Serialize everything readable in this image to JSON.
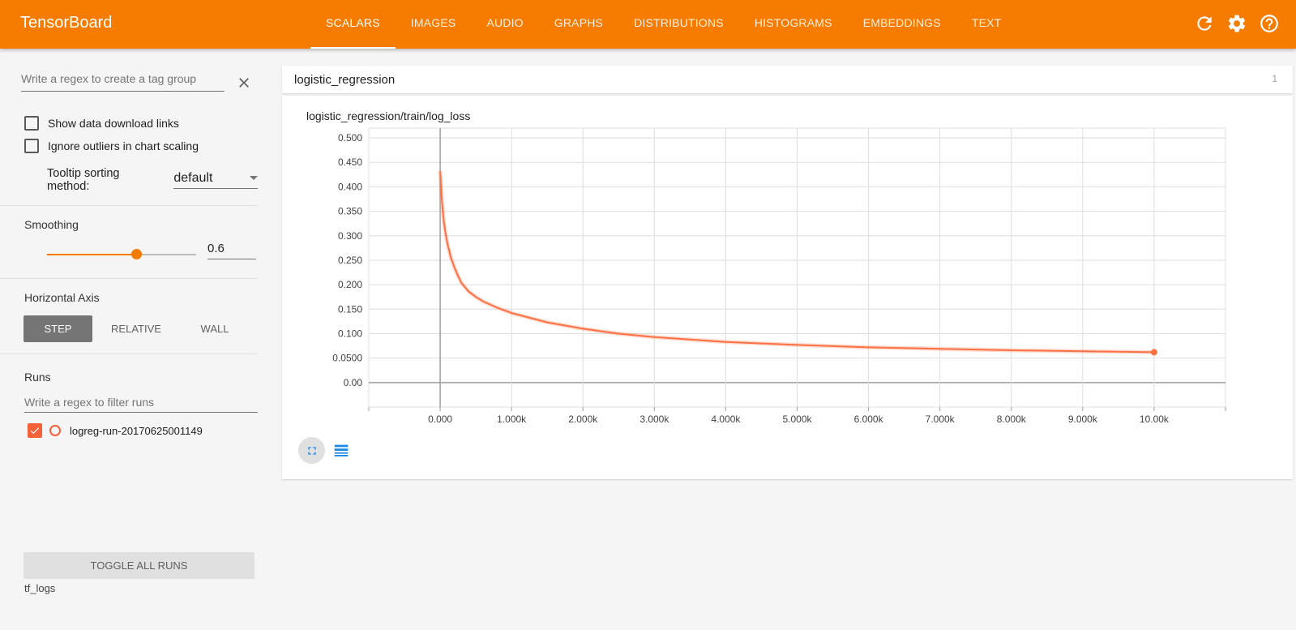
{
  "app": {
    "brand": "TensorBoard",
    "tabs": [
      "SCALARS",
      "IMAGES",
      "AUDIO",
      "GRAPHS",
      "DISTRIBUTIONS",
      "HISTOGRAMS",
      "EMBEDDINGS",
      "TEXT"
    ],
    "active_tab": "SCALARS",
    "accent": "#f57c00",
    "icons": [
      "refresh-icon",
      "settings-icon",
      "help-icon"
    ]
  },
  "sidebar": {
    "tag_regex_placeholder": "Write a regex to create a tag group",
    "show_download_links": "Show data download links",
    "ignore_outliers": "Ignore outliers in chart scaling",
    "tooltip_label": "Tooltip sorting method:",
    "tooltip_value": "default",
    "smoothing_title": "Smoothing",
    "smoothing_value": "0.6",
    "smoothing_fraction": 0.6,
    "horizontal_axis_title": "Horizontal Axis",
    "axis_options": [
      "STEP",
      "RELATIVE",
      "WALL"
    ],
    "axis_selected": "STEP",
    "runs_title": "Runs",
    "runs_filter_placeholder": "Write a regex to filter runs",
    "runs": [
      {
        "name": "logreg-run-20170625001149",
        "checked": true,
        "color": "#f4623a"
      }
    ],
    "toggle_all": "TOGGLE ALL RUNS",
    "logdir": "tf_logs"
  },
  "main": {
    "group_name": "logistic_regression",
    "group_count": "1",
    "chart_title": "logistic_regression/train/log_loss"
  },
  "chart_data": {
    "type": "line",
    "title": "logistic_regression/train/log_loss",
    "xlabel": "",
    "ylabel": "",
    "xlim": [
      -1000,
      11000
    ],
    "ylim": [
      -0.05,
      0.52
    ],
    "x_ticks": [
      0,
      1000,
      2000,
      3000,
      4000,
      5000,
      6000,
      7000,
      8000,
      9000,
      10000
    ],
    "x_tick_labels": [
      "0.000",
      "1.000k",
      "2.000k",
      "3.000k",
      "4.000k",
      "5.000k",
      "6.000k",
      "7.000k",
      "8.000k",
      "9.000k",
      "10.00k"
    ],
    "y_ticks": [
      0,
      0.05,
      0.1,
      0.15,
      0.2,
      0.25,
      0.3,
      0.35,
      0.4,
      0.45,
      0.5
    ],
    "y_tick_labels": [
      "0.00",
      "0.0500",
      "0.100",
      "0.150",
      "0.200",
      "0.250",
      "0.300",
      "0.350",
      "0.400",
      "0.450",
      "0.500"
    ],
    "grid": true,
    "series": [
      {
        "color": "#ff7043",
        "x": [
          0,
          25,
          50,
          75,
          100,
          150,
          200,
          250,
          300,
          400,
          500,
          600,
          800,
          1000,
          1500,
          2000,
          2500,
          3000,
          4000,
          5000,
          6000,
          7000,
          8000,
          9000,
          10000
        ],
        "y": [
          0.432,
          0.37,
          0.33,
          0.305,
          0.285,
          0.255,
          0.235,
          0.218,
          0.203,
          0.186,
          0.175,
          0.166,
          0.153,
          0.142,
          0.123,
          0.11,
          0.1,
          0.093,
          0.083,
          0.077,
          0.072,
          0.069,
          0.066,
          0.064,
          0.062
        ]
      }
    ]
  }
}
